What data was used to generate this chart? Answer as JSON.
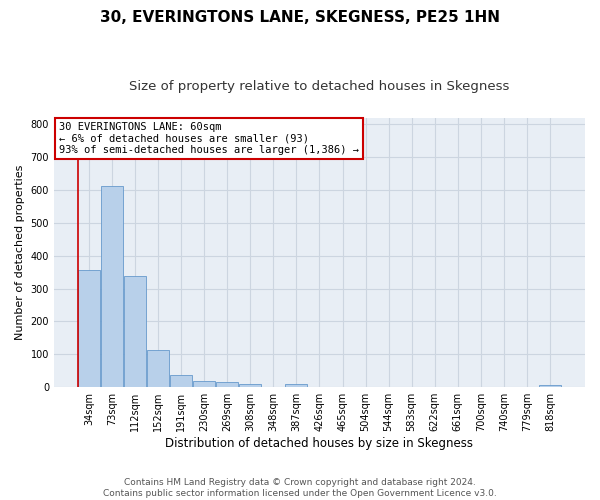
{
  "title": "30, EVERINGTONS LANE, SKEGNESS, PE25 1HN",
  "subtitle": "Size of property relative to detached houses in Skegness",
  "xlabel": "Distribution of detached houses by size in Skegness",
  "ylabel": "Number of detached properties",
  "categories": [
    "34sqm",
    "73sqm",
    "112sqm",
    "152sqm",
    "191sqm",
    "230sqm",
    "269sqm",
    "308sqm",
    "348sqm",
    "387sqm",
    "426sqm",
    "465sqm",
    "504sqm",
    "544sqm",
    "583sqm",
    "622sqm",
    "661sqm",
    "700sqm",
    "740sqm",
    "779sqm",
    "818sqm"
  ],
  "values": [
    358,
    613,
    338,
    114,
    38,
    19,
    15,
    10,
    0,
    10,
    0,
    0,
    0,
    0,
    0,
    0,
    0,
    0,
    0,
    0,
    8
  ],
  "bar_color": "#b8d0ea",
  "bar_edge_color": "#6699cc",
  "annotation_line1": "30 EVERINGTONS LANE: 60sqm",
  "annotation_line2": "← 6% of detached houses are smaller (93)",
  "annotation_line3": "93% of semi-detached houses are larger (1,386) →",
  "annotation_box_color": "#ffffff",
  "annotation_box_edge_color": "#cc0000",
  "vline_color": "#cc0000",
  "grid_color": "#ccd5e0",
  "background_color": "#e8eef5",
  "ylim": [
    0,
    820
  ],
  "yticks": [
    0,
    100,
    200,
    300,
    400,
    500,
    600,
    700,
    800
  ],
  "footnote": "Contains HM Land Registry data © Crown copyright and database right 2024.\nContains public sector information licensed under the Open Government Licence v3.0.",
  "title_fontsize": 11,
  "subtitle_fontsize": 9.5,
  "xlabel_fontsize": 8.5,
  "ylabel_fontsize": 8,
  "tick_fontsize": 7,
  "annotation_fontsize": 7.5,
  "footnote_fontsize": 6.5
}
